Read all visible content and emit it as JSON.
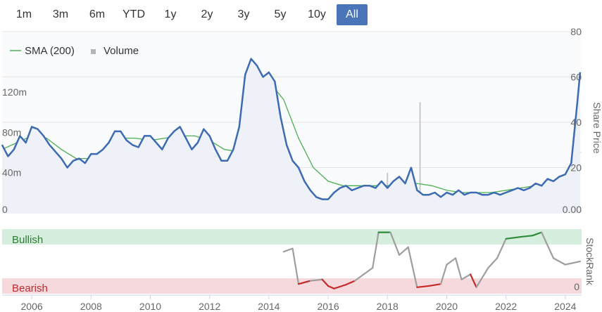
{
  "range_buttons": [
    "1m",
    "3m",
    "6m",
    "YTD",
    "1y",
    "2y",
    "3y",
    "5y",
    "10y",
    "All"
  ],
  "active_range": "All",
  "legend": {
    "sma_label": "SMA (200)",
    "volume_label": "Volume"
  },
  "colors": {
    "price": "#3d6bb3",
    "sma": "#4caf50",
    "volume": "#c8c8c8",
    "bullish_bg": "#d6eedd",
    "bearish_bg": "#f5d9dc",
    "bullish_text": "#2e7d32",
    "bearish_text": "#c62828",
    "rank_neutral": "#9e9e9e",
    "rank_bull": "#2e8b3a",
    "rank_bear": "#c62828",
    "active_button": "#4a75b8"
  },
  "price_axis": {
    "title": "Share Price",
    "ticks": [
      "80",
      "60",
      "40",
      "20",
      "0.00"
    ]
  },
  "volume_axis": {
    "ticks": [
      "120m",
      "80m",
      "40m",
      "0"
    ]
  },
  "rank_axis": {
    "title": "StockRank",
    "ticks": [
      "0"
    ]
  },
  "zones": {
    "bullish": "Bullish",
    "bearish": "Bearish"
  },
  "x_axis": {
    "ticks": [
      "2006",
      "2008",
      "2010",
      "2012",
      "2014",
      "2016",
      "2018",
      "2020",
      "2022",
      "2024"
    ]
  },
  "chart_data": {
    "type": "line",
    "x_label": "",
    "price_ylim": [
      0,
      80
    ],
    "volume_ylim": [
      0,
      180
    ],
    "series": [
      {
        "key": "price",
        "x": [
          2005.0,
          2005.2,
          2005.4,
          2005.6,
          2005.8,
          2006.0,
          2006.2,
          2006.4,
          2006.6,
          2006.8,
          2007.0,
          2007.2,
          2007.4,
          2007.6,
          2007.8,
          2008.0,
          2008.2,
          2008.4,
          2008.6,
          2008.8,
          2009.0,
          2009.2,
          2009.4,
          2009.6,
          2009.8,
          2010.0,
          2010.2,
          2010.4,
          2010.6,
          2010.8,
          2011.0,
          2011.2,
          2011.4,
          2011.6,
          2011.8,
          2012.0,
          2012.2,
          2012.4,
          2012.6,
          2012.8,
          2013.0,
          2013.2,
          2013.4,
          2013.6,
          2013.8,
          2014.0,
          2014.2,
          2014.4,
          2014.6,
          2014.8,
          2015.0,
          2015.2,
          2015.4,
          2015.6,
          2015.8,
          2016.0,
          2016.2,
          2016.4,
          2016.6,
          2016.8,
          2017.0,
          2017.2,
          2017.4,
          2017.6,
          2017.8,
          2018.0,
          2018.2,
          2018.4,
          2018.6,
          2018.8,
          2019.0,
          2019.2,
          2019.4,
          2019.6,
          2019.8,
          2020.0,
          2020.2,
          2020.4,
          2020.6,
          2020.8,
          2021.0,
          2021.2,
          2021.4,
          2021.6,
          2021.8,
          2022.0,
          2022.2,
          2022.4,
          2022.6,
          2022.8,
          2023.0,
          2023.2,
          2023.4,
          2023.6,
          2023.8,
          2024.0,
          2024.2,
          2024.4,
          2024.5
        ],
        "y": [
          30,
          25,
          28,
          34,
          31,
          38,
          37,
          34,
          30,
          27,
          24,
          20,
          23,
          24,
          22,
          26,
          26,
          28,
          31,
          36,
          36,
          32,
          30,
          29,
          34,
          34,
          31,
          28,
          33,
          36,
          38,
          33,
          28,
          31,
          37,
          34,
          28,
          23,
          23,
          28,
          38,
          61,
          68,
          65,
          60,
          62,
          58,
          42,
          30,
          23,
          20,
          14,
          10,
          7,
          6,
          6,
          9,
          11,
          12,
          10,
          11,
          12,
          12,
          11,
          14,
          11,
          14,
          16,
          13,
          20,
          10,
          8,
          8,
          9,
          7,
          9,
          8,
          10,
          8,
          9,
          9,
          8,
          8,
          9,
          8,
          9,
          10,
          11,
          10,
          11,
          13,
          12,
          15,
          14,
          16,
          17,
          22,
          48,
          62
        ]
      },
      {
        "key": "sma",
        "name": "SMA (200)",
        "x": [
          2005.0,
          2005.5,
          2006.0,
          2006.5,
          2007.0,
          2007.5,
          2008.0,
          2008.5,
          2009.0,
          2009.5,
          2010.0,
          2010.5,
          2011.0,
          2011.5,
          2012.0,
          2012.5,
          2013.0,
          2013.5,
          2014.0,
          2014.5,
          2015.0,
          2015.5,
          2016.0,
          2016.5,
          2017.0,
          2017.5,
          2018.0,
          2018.5,
          2019.0,
          2019.5,
          2020.0,
          2020.5,
          2021.0,
          2021.5,
          2022.0,
          2022.5,
          2023.0,
          2023.5,
          2024.0,
          2024.5
        ],
        "y": [
          28,
          31,
          34,
          33,
          28,
          24,
          24,
          28,
          33,
          33,
          32,
          33,
          34,
          34,
          32,
          28,
          27,
          38,
          58,
          50,
          33,
          20,
          14,
          12,
          12,
          12,
          12,
          12,
          13,
          12,
          10,
          9,
          9,
          9,
          10,
          11,
          12,
          13,
          15,
          27
        ]
      },
      {
        "key": "volume",
        "name": "Volume",
        "x": [
          2005.3,
          2006.1,
          2007.4,
          2008.7,
          2009.9,
          2010.8,
          2011.6,
          2012.4,
          2013.5,
          2014.3,
          2015.6,
          2016.7,
          2017.6,
          2018.0,
          2018.7,
          2018.9,
          2019.1,
          2019.4,
          2020.3,
          2021.3,
          2022.1,
          2023.3,
          2024.2
        ],
        "y": [
          3,
          2,
          4,
          3,
          3,
          2,
          4,
          3,
          6,
          4,
          5,
          6,
          7,
          40,
          12,
          15,
          110,
          18,
          10,
          8,
          8,
          12,
          16
        ]
      },
      {
        "key": "stockrank",
        "name": "StockRank",
        "x": [
          2014.5,
          2014.8,
          2015.0,
          2015.4,
          2015.8,
          2016.0,
          2016.2,
          2016.6,
          2016.9,
          2017.2,
          2017.5,
          2017.7,
          2018.1,
          2018.4,
          2018.7,
          2019.0,
          2019.4,
          2019.8,
          2020.0,
          2020.3,
          2020.5,
          2020.8,
          2021.0,
          2021.4,
          2021.7,
          2022.0,
          2022.5,
          2022.9,
          2023.2,
          2023.6,
          2024.0,
          2024.5
        ],
        "y": [
          65,
          70,
          15,
          20,
          22,
          12,
          8,
          14,
          20,
          30,
          40,
          95,
          95,
          60,
          72,
          10,
          12,
          15,
          45,
          55,
          22,
          30,
          10,
          40,
          55,
          85,
          88,
          90,
          95,
          55,
          45,
          50
        ]
      }
    ]
  }
}
